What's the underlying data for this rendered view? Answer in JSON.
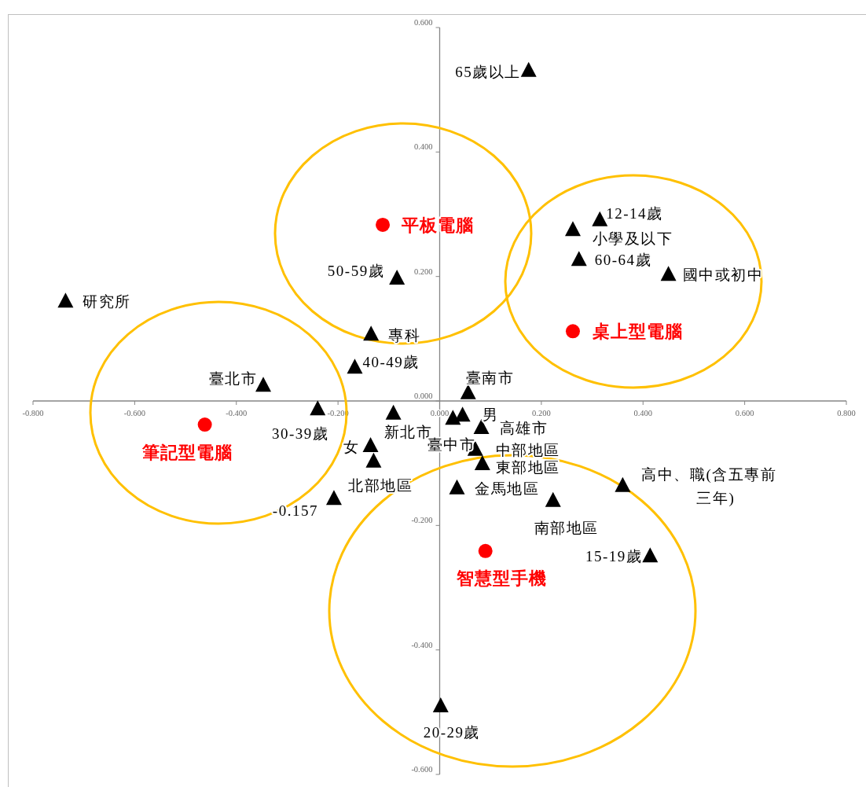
{
  "chart_data": {
    "type": "scatter",
    "xlim": [
      -0.8,
      0.8
    ],
    "ylim": [
      -0.6,
      0.6
    ],
    "xticks": [
      {
        "value": -0.8,
        "label": "-0.800"
      },
      {
        "value": -0.6,
        "label": "-0.600"
      },
      {
        "value": -0.4,
        "label": "-0.400"
      },
      {
        "value": -0.2,
        "label": "-0.200"
      },
      {
        "value": 0,
        "label": "0.000"
      },
      {
        "value": 0.2,
        "label": "0.200"
      },
      {
        "value": 0.4,
        "label": "0.400"
      },
      {
        "value": 0.6,
        "label": "0.600"
      },
      {
        "value": 0.8,
        "label": "0.800"
      }
    ],
    "yticks": [
      {
        "value": -0.6,
        "label": "-0.600"
      },
      {
        "value": -0.4,
        "label": "-0.400"
      },
      {
        "value": -0.2,
        "label": "-0.200"
      },
      {
        "value": 0,
        "label": "0.000"
      },
      {
        "value": 0.2,
        "label": "0.200"
      },
      {
        "value": 0.4,
        "label": "0.400"
      },
      {
        "value": 0.6,
        "label": "0.600"
      }
    ],
    "series": [
      {
        "color": "#ff0000",
        "marker": "circle",
        "x": [
          -0.112,
          0.262,
          -0.462,
          0.09
        ],
        "values": [
          0.283,
          0.112,
          -0.038,
          -0.241
        ]
      },
      {
        "color": "#000000",
        "marker": "triangle",
        "x": [
          0.175,
          0.315,
          0.262,
          0.274,
          0.45,
          -0.084,
          -0.736,
          -0.135,
          -0.167,
          -0.347,
          0.056,
          -0.24,
          -0.091,
          0.026,
          0.045,
          0.082,
          -0.136,
          0.07,
          -0.13,
          -0.208,
          0.084,
          0.034,
          0.223,
          0.36,
          0.414,
          0.002
        ],
        "values": [
          0.531,
          0.291,
          0.275,
          0.227,
          0.203,
          0.197,
          0.16,
          0.107,
          0.054,
          0.025,
          0.013,
          -0.013,
          -0.02,
          -0.028,
          -0.023,
          -0.043,
          -0.072,
          -0.078,
          -0.097,
          -0.157,
          -0.101,
          -0.14,
          -0.16,
          -0.136,
          -0.249,
          -0.49
        ]
      }
    ],
    "annotations": [
      {
        "text": "平板電腦",
        "x": -0.112,
        "y": 0.283
      },
      {
        "text": "桌上型電腦",
        "x": 0.262,
        "y": 0.112
      },
      {
        "text": "筆記型電腦",
        "x": -0.462,
        "y": -0.038
      },
      {
        "text": "智慧型手機",
        "x": 0.09,
        "y": -0.241
      },
      {
        "text": "65歲以上",
        "x": 0.175,
        "y": 0.531
      },
      {
        "text": "12-14歲",
        "x": 0.315,
        "y": 0.291
      },
      {
        "text": "小學及以下",
        "x": 0.262,
        "y": 0.275
      },
      {
        "text": "60-64歲",
        "x": 0.274,
        "y": 0.227
      },
      {
        "text": "國中或初中",
        "x": 0.45,
        "y": 0.203
      },
      {
        "text": "50-59歲",
        "x": -0.084,
        "y": 0.197
      },
      {
        "text": "研究所",
        "x": -0.736,
        "y": 0.16
      },
      {
        "text": "專科",
        "x": -0.135,
        "y": 0.107
      },
      {
        "text": "40-49歲",
        "x": -0.167,
        "y": 0.054
      },
      {
        "text": "臺北市",
        "x": -0.347,
        "y": 0.025
      },
      {
        "text": "臺南市",
        "x": 0.056,
        "y": 0.013
      },
      {
        "text": "30-39歲",
        "x": -0.24,
        "y": -0.013
      },
      {
        "text": "新北市",
        "x": -0.091,
        "y": -0.02
      },
      {
        "text": "臺中市",
        "x": 0.026,
        "y": -0.028
      },
      {
        "text": "男",
        "x": 0.045,
        "y": -0.023
      },
      {
        "text": "高雄市",
        "x": 0.082,
        "y": -0.043
      },
      {
        "text": "女",
        "x": -0.136,
        "y": -0.072
      },
      {
        "text": "中部地區",
        "x": 0.07,
        "y": -0.078
      },
      {
        "text": "北部地區",
        "x": -0.13,
        "y": -0.097
      },
      {
        "text": "-0.157",
        "x": -0.208,
        "y": -0.157
      },
      {
        "text": "東部地區",
        "x": 0.084,
        "y": -0.101
      },
      {
        "text": "金馬地區",
        "x": 0.034,
        "y": -0.14
      },
      {
        "text": "南部地區",
        "x": 0.223,
        "y": -0.16
      },
      {
        "text": "高中、職(含五專前三年)",
        "x": 0.36,
        "y": -0.136
      },
      {
        "text": "15-19歲",
        "x": 0.414,
        "y": -0.249
      },
      {
        "text": "20-29歲",
        "x": 0.002,
        "y": -0.49
      }
    ]
  }
}
